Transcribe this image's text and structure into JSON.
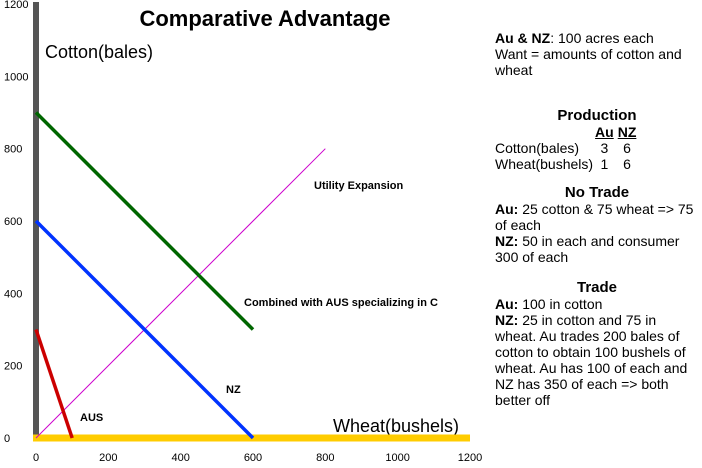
{
  "colors": {
    "axis_y": "#555555",
    "axis_x": "#ffcc00",
    "combined": "#006600",
    "nz": "#0033ff",
    "aus": "#cc0000",
    "utility": "#cc00cc"
  },
  "chart_data": {
    "type": "line",
    "title": "Comparative Advantage",
    "xlabel": "Wheat(bushels)",
    "ylabel": "Cotton(bales)",
    "xlim": [
      0,
      1200
    ],
    "ylim": [
      0,
      1200
    ],
    "x_ticks": [
      "0",
      "200",
      "400",
      "600",
      "800",
      "1000",
      "1200"
    ],
    "y_ticks": [
      "0",
      "200",
      "400",
      "600",
      "800",
      "1000",
      "1200"
    ],
    "grid": false,
    "series": [
      {
        "name": "AUS",
        "points": [
          [
            0,
            300
          ],
          [
            100,
            0
          ]
        ]
      },
      {
        "name": "NZ",
        "points": [
          [
            0,
            600
          ],
          [
            600,
            0
          ]
        ]
      },
      {
        "name": "Combined with AUS  specializing in C",
        "points": [
          [
            0,
            900
          ],
          [
            600,
            300
          ]
        ]
      },
      {
        "name": "Utility Expansion",
        "points": [
          [
            0,
            0
          ],
          [
            800,
            800
          ]
        ]
      }
    ]
  },
  "notes": {
    "intro_bold": "Au & NZ",
    "intro_rest": ": 100 acres each",
    "intro_line2": "Want = amounts of cotton and wheat",
    "production_heading": "Production",
    "production_cols": [
      "Au",
      "NZ"
    ],
    "production_rows": [
      {
        "label": "Cotton(bales)",
        "au": "3",
        "nz": "6"
      },
      {
        "label": "Wheat(bushels)",
        "au": "1",
        "nz": "6"
      }
    ],
    "notrade_heading": "No Trade",
    "notrade_au_label": "Au:",
    "notrade_au_text": " 25 cotton & 75 wheat => 75 of each",
    "notrade_nz_label": "NZ:",
    "notrade_nz_text": "  50 in each and consumer 300 of each",
    "trade_heading": "Trade",
    "trade_au_label": "Au:",
    "trade_au_text": " 100 in cotton",
    "trade_nz_label": "NZ:",
    "trade_nz_text": "  25 in cotton and 75 in wheat. Au trades 200 bales of cotton to obtain 100 bushels of wheat.  Au has 100 of each and NZ has 350 of each => both better off"
  }
}
